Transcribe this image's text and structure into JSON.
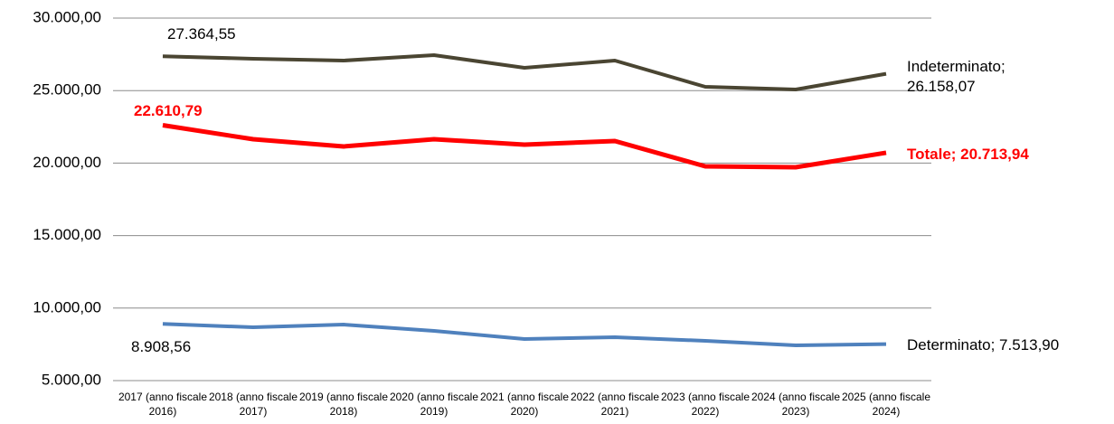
{
  "chart_data": {
    "type": "line",
    "categories": [
      "2017 (anno fiscale 2016)",
      "2018 (anno fiscale 2017)",
      "2019 (anno fiscale 2018)",
      "2020 (anno fiscale 2019)",
      "2021 (anno fiscale 2020)",
      "2022 (anno fiscale 2021)",
      "2023 (anno fiscale 2022)",
      "2024 (anno fiscale 2023)",
      "2025 (anno fiscale 2024)"
    ],
    "series": [
      {
        "color": "#4a4532",
        "values": [
          27364.55,
          27195,
          27070,
          27444,
          26571,
          27070,
          25262,
          25075,
          26158.07
        ],
        "value_labels": [
          "27.364,55",
          null,
          null,
          null,
          null,
          null,
          null,
          null,
          "Indeterminato; 26.158,07"
        ]
      },
      {
        "color": "#ff0000",
        "values": [
          22610.79,
          21646,
          21147,
          21646,
          21272,
          21521,
          19776,
          19713,
          20713.94
        ],
        "value_labels": [
          "22.610,79",
          null,
          null,
          null,
          null,
          null,
          null,
          null,
          "Totale; 20.713,94"
        ]
      },
      {
        "color": "#4f81bd",
        "values": [
          8908.56,
          8678,
          8865,
          8429,
          7868,
          7993,
          7743,
          7431,
          7513.9
        ],
        "value_labels": [
          "8.908,56",
          null,
          null,
          null,
          null,
          null,
          null,
          null,
          "Determinato; 7.513,90"
        ]
      }
    ],
    "ylim": [
      5000,
      30000
    ],
    "yticks": [
      {
        "value": 5000,
        "label": "5.000,00"
      },
      {
        "value": 10000,
        "label": "10.000,00"
      },
      {
        "value": 15000,
        "label": "15.000,00"
      },
      {
        "value": 20000,
        "label": "20.000,00"
      },
      {
        "value": 25000,
        "label": "25.000,00"
      },
      {
        "value": 30000,
        "label": "30.000,00"
      }
    ],
    "grid": true
  }
}
